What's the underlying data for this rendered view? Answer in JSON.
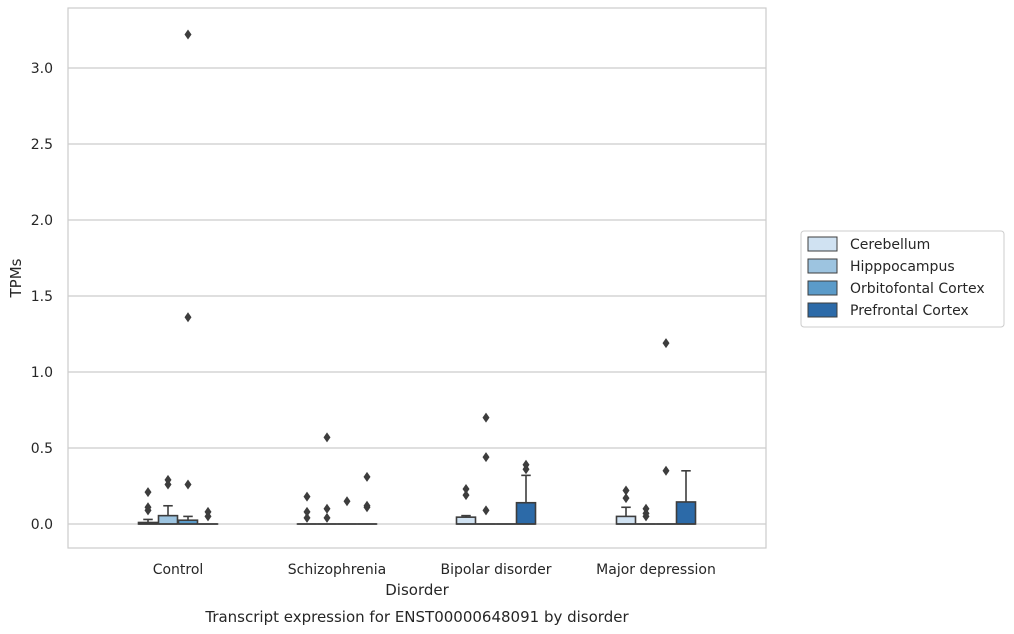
{
  "chart_data": {
    "type": "box",
    "title": "Transcript expression for ENST00000648091 by disorder",
    "xlabel": "Disorder",
    "ylabel": "TPMs",
    "ylim": [
      -0.15,
      3.4
    ],
    "yticks": [
      0.0,
      0.5,
      1.0,
      1.5,
      2.0,
      2.5,
      3.0
    ],
    "ytick_labels": [
      "0.0",
      "0.5",
      "1.0",
      "1.5",
      "2.0",
      "2.5",
      "3.0"
    ],
    "categories": [
      "Control",
      "Schizophrenia",
      "Bipolar disorder",
      "Major depression"
    ],
    "grid": "horizontal",
    "legend_position": "right",
    "series": [
      {
        "name": "Cerebellum",
        "color": "#d0e2f2",
        "boxes": [
          {
            "q1": 0.0,
            "median": 0.0,
            "q3": 0.01,
            "whisker_low": 0.0,
            "whisker_high": 0.03,
            "outliers": [
              0.09,
              0.11,
              0.21
            ]
          },
          {
            "q1": 0.0,
            "median": 0.0,
            "q3": 0.0,
            "whisker_low": 0.0,
            "whisker_high": 0.0,
            "outliers": [
              0.04,
              0.08,
              0.18
            ]
          },
          {
            "q1": 0.0,
            "median": 0.0,
            "q3": 0.045,
            "whisker_low": 0.0,
            "whisker_high": 0.055,
            "outliers": [
              0.19,
              0.23
            ]
          },
          {
            "q1": 0.0,
            "median": 0.0,
            "q3": 0.05,
            "whisker_low": 0.0,
            "whisker_high": 0.11,
            "outliers": [
              0.17,
              0.22
            ]
          }
        ]
      },
      {
        "name": "Hipppocampus",
        "color": "#9dc4e0",
        "boxes": [
          {
            "q1": 0.0,
            "median": 0.0,
            "q3": 0.055,
            "whisker_low": 0.0,
            "whisker_high": 0.12,
            "outliers": [
              0.26,
              0.29
            ]
          },
          {
            "q1": 0.0,
            "median": 0.0,
            "q3": 0.0,
            "whisker_low": 0.0,
            "whisker_high": 0.0,
            "outliers": [
              0.04,
              0.1,
              0.57
            ]
          },
          {
            "q1": 0.0,
            "median": 0.0,
            "q3": 0.0,
            "whisker_low": 0.0,
            "whisker_high": 0.0,
            "outliers": [
              0.09,
              0.44,
              0.7
            ]
          },
          {
            "q1": 0.0,
            "median": 0.0,
            "q3": 0.0,
            "whisker_low": 0.0,
            "whisker_high": 0.0,
            "outliers": [
              0.05,
              0.07,
              0.1
            ]
          }
        ]
      },
      {
        "name": "Orbitofontal Cortex",
        "color": "#5b9bc9",
        "boxes": [
          {
            "q1": 0.0,
            "median": 0.0,
            "q3": 0.025,
            "whisker_low": 0.0,
            "whisker_high": 0.05,
            "outliers": [
              0.26,
              1.36,
              3.22
            ]
          },
          {
            "q1": 0.0,
            "median": 0.0,
            "q3": 0.0,
            "whisker_low": 0.0,
            "whisker_high": 0.0,
            "outliers": [
              0.15
            ]
          },
          {
            "q1": 0.0,
            "median": 0.0,
            "q3": 0.0,
            "whisker_low": 0.0,
            "whisker_high": 0.0,
            "outliers": []
          },
          {
            "q1": 0.0,
            "median": 0.0,
            "q3": 0.0,
            "whisker_low": 0.0,
            "whisker_high": 0.0,
            "outliers": [
              0.35,
              1.19
            ]
          }
        ]
      },
      {
        "name": "Prefrontal Cortex",
        "color": "#2c6aa8",
        "boxes": [
          {
            "q1": 0.0,
            "median": 0.0,
            "q3": 0.0,
            "whisker_low": 0.0,
            "whisker_high": 0.0,
            "outliers": [
              0.05,
              0.08
            ]
          },
          {
            "q1": 0.0,
            "median": 0.0,
            "q3": 0.0,
            "whisker_low": 0.0,
            "whisker_high": 0.0,
            "outliers": [
              0.11,
              0.12,
              0.31
            ]
          },
          {
            "q1": 0.0,
            "median": 0.0,
            "q3": 0.14,
            "whisker_low": 0.0,
            "whisker_high": 0.32,
            "outliers": [
              0.36,
              0.39
            ]
          },
          {
            "q1": 0.0,
            "median": 0.0,
            "q3": 0.145,
            "whisker_low": 0.0,
            "whisker_high": 0.35,
            "outliers": []
          }
        ]
      }
    ]
  }
}
